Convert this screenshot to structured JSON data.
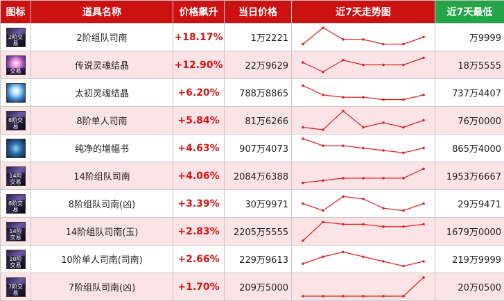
{
  "header": {
    "icon": "图标",
    "name": "道具名称",
    "rise": "价格飙升",
    "price": "当日价格",
    "trend": "近7天走势图",
    "low": "近7天最低"
  },
  "colors": {
    "header_red": "#cc1111",
    "header_green": "#22a447",
    "rise_red": "#d21414",
    "row_pink": "#fbe3e6",
    "trend_line": "#e02020"
  },
  "rows": [
    {
      "icon": "book-icon",
      "icon_style": "icon-book",
      "tag": "2阶交易",
      "name": "2阶组队司南",
      "rise": "+18.17%",
      "price": "1万2221",
      "low": "万9999",
      "trend": [
        2,
        9,
        4,
        4,
        2,
        2,
        5
      ]
    },
    {
      "icon": "crystal-icon",
      "icon_style": "icon-crystal-pink",
      "tag": "交易",
      "name": "传说灵魂结晶",
      "rise": "+12.90%",
      "price": "22万9629",
      "low": "18万5555",
      "trend": [
        6,
        2,
        7,
        5,
        5,
        5,
        8
      ]
    },
    {
      "icon": "crystal-icon",
      "icon_style": "icon-crystal-blue",
      "tag": "",
      "name": "太初灵魂结晶",
      "rise": "+6.20%",
      "price": "788万8865",
      "low": "737万4407",
      "trend": [
        8,
        4,
        3,
        3,
        2,
        2,
        4
      ]
    },
    {
      "icon": "book-icon",
      "icon_style": "icon-book",
      "tag": "8阶交易",
      "name": "8阶单人司南",
      "rise": "+5.84%",
      "price": "81万6266",
      "low": "76万0000",
      "trend": [
        2,
        1,
        9,
        2,
        4,
        2,
        5
      ]
    },
    {
      "icon": "orb-icon",
      "icon_style": "icon-orb",
      "tag": "",
      "name": "纯净的增幅书",
      "rise": "+4.63%",
      "price": "907万4073",
      "low": "865万4000",
      "trend": [
        9,
        6,
        6,
        5,
        4,
        3,
        5
      ]
    },
    {
      "icon": "book-icon",
      "icon_style": "icon-book",
      "tag": "14阶交易",
      "name": "14阶组队司南",
      "rise": "+4.06%",
      "price": "2084万6388",
      "low": "1953万6667",
      "trend": [
        2,
        3,
        4,
        4,
        4,
        4,
        8
      ]
    },
    {
      "icon": "book-icon",
      "icon_style": "icon-book",
      "tag": "8阶交易",
      "name": "8阶组队司南(凶)",
      "rise": "+3.39%",
      "price": "30万9971",
      "low": "29万9471",
      "trend": [
        5,
        2,
        8,
        7,
        3,
        2,
        5
      ]
    },
    {
      "icon": "book-icon",
      "icon_style": "icon-book",
      "tag": "14阶交易",
      "name": "14阶组队司南(玉)",
      "rise": "+2.83%",
      "price": "2205万5555",
      "low": "1679万0000",
      "trend": [
        1,
        9,
        8,
        8,
        7,
        7,
        8
      ]
    },
    {
      "icon": "book-icon",
      "icon_style": "icon-book",
      "tag": "10阶交易",
      "name": "10阶单人司南(司南)",
      "rise": "+2.66%",
      "price": "229万9613",
      "low": "219万9999",
      "trend": [
        3,
        6,
        8,
        6,
        4,
        2,
        4
      ]
    },
    {
      "icon": "book-icon",
      "icon_style": "icon-book",
      "tag": "7阶交易",
      "name": "7阶组队司南(凶)",
      "rise": "+1.70%",
      "price": "209万5000",
      "low": "20万0500",
      "trend": [
        1,
        1,
        1,
        1,
        1,
        1,
        9
      ]
    }
  ]
}
